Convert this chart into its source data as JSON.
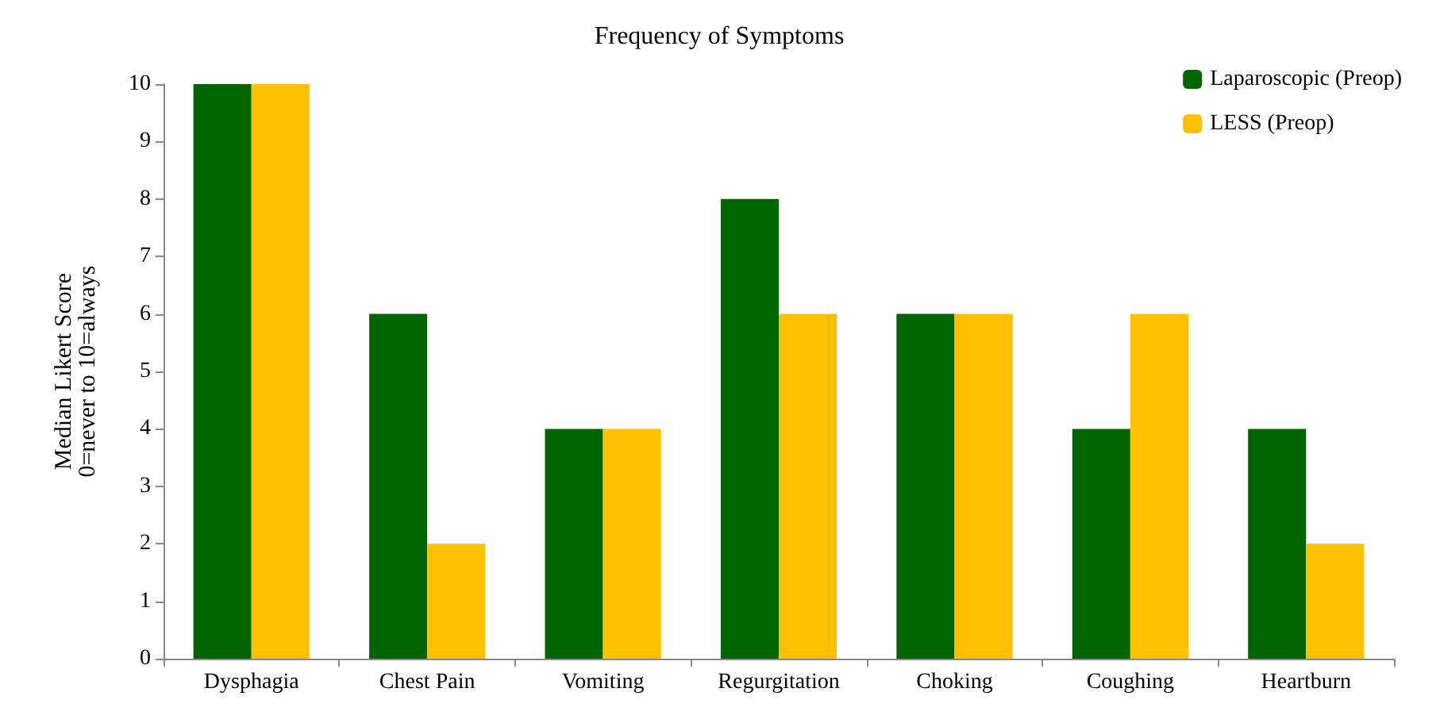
{
  "chart_data": {
    "type": "bar",
    "title": "Frequency of Symptoms",
    "ylabel": "Median Likert Score\n0=never to 10=always",
    "categories": [
      "Dysphagia",
      "Chest Pain",
      "Vomiting",
      "Regurgitation",
      "Choking",
      "Coughing",
      "Heartburn"
    ],
    "series": [
      {
        "name": "Laparoscopic (Preop)",
        "color": "#006400",
        "values": [
          10,
          6,
          4,
          8,
          6,
          4,
          4
        ]
      },
      {
        "name": "LESS (Preop)",
        "color": "#ffc000",
        "values": [
          10,
          2,
          4,
          6,
          6,
          6,
          2
        ]
      }
    ],
    "ylim": [
      0,
      10
    ],
    "yticks": [
      0,
      1,
      2,
      3,
      4,
      5,
      6,
      7,
      8,
      9,
      10
    ],
    "grid": false,
    "legend": "top right"
  }
}
